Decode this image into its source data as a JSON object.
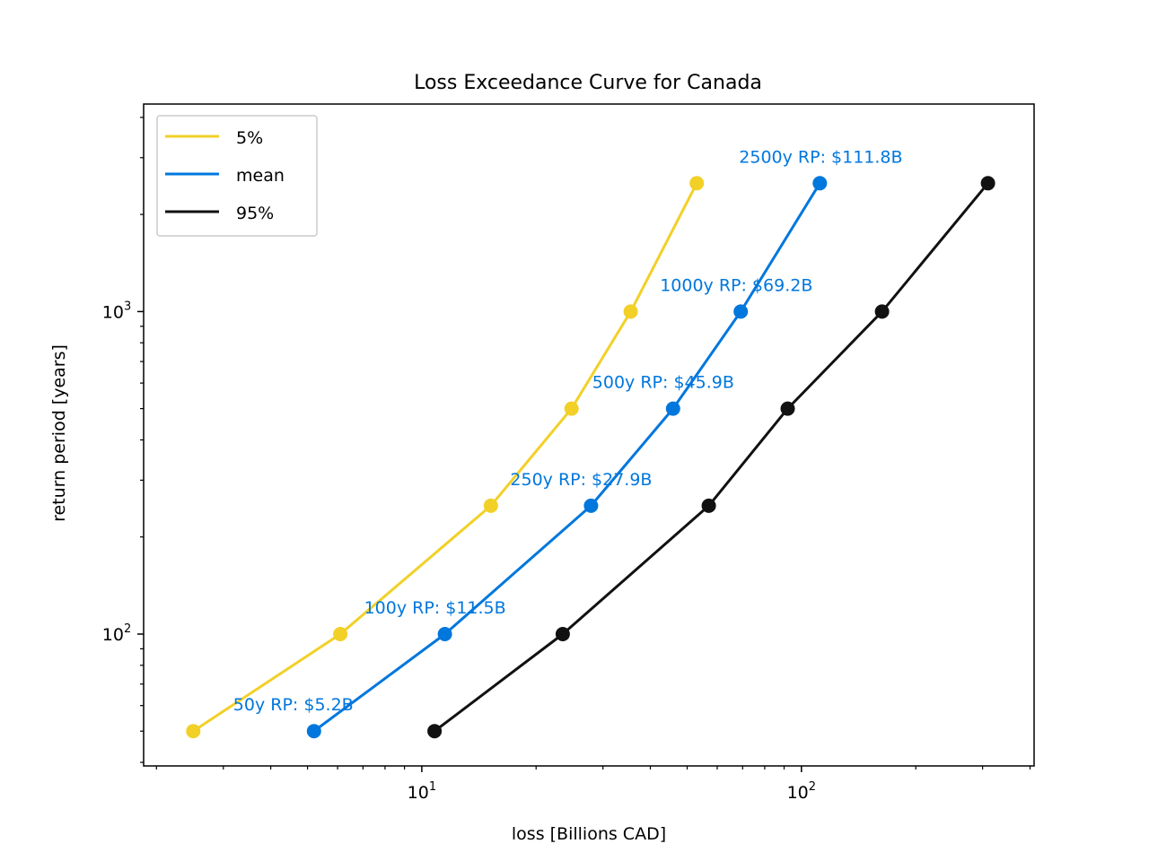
{
  "chart_data": {
    "type": "line",
    "title": "Loss Exceedance Curve for Canada",
    "xlabel": "loss [Billions CAD]",
    "ylabel": "return period [years]",
    "xscale": "log",
    "yscale": "log",
    "xlim": [
      1.85,
      410
    ],
    "ylim": [
      39,
      4400
    ],
    "x_ticks": [
      {
        "base": "10",
        "exp": "1",
        "value": 10
      },
      {
        "base": "10",
        "exp": "2",
        "value": 100
      }
    ],
    "y_ticks": [
      {
        "base": "10",
        "exp": "2",
        "value": 100
      },
      {
        "base": "10",
        "exp": "3",
        "value": 1000
      }
    ],
    "grid": false,
    "legend_position": "top-left",
    "return_periods": [
      50,
      100,
      250,
      500,
      1000,
      2500
    ],
    "series": [
      {
        "name": "5%",
        "color": "#f2d027",
        "loss": [
          2.5,
          6.1,
          15.2,
          24.8,
          35.5,
          53.0
        ]
      },
      {
        "name": "mean",
        "color": "#0077dd",
        "loss": [
          5.2,
          11.5,
          27.9,
          45.9,
          69.2,
          111.8
        ]
      },
      {
        "name": "95%",
        "color": "#111111",
        "loss": [
          10.8,
          23.5,
          57.0,
          92.0,
          163.0,
          310.0
        ]
      }
    ],
    "annotations": [
      {
        "text": "50y RP: $5.2B",
        "x": 5.2,
        "y": 50
      },
      {
        "text": "100y RP: $11.5B",
        "x": 11.5,
        "y": 100
      },
      {
        "text": "250y RP: $27.9B",
        "x": 27.9,
        "y": 250
      },
      {
        "text": "500y RP: $45.9B",
        "x": 45.9,
        "y": 500
      },
      {
        "text": "1000y RP: $69.2B",
        "x": 69.2,
        "y": 1000
      },
      {
        "text": "2500y RP: $111.8B",
        "x": 111.8,
        "y": 2500
      }
    ],
    "annotation_color": "#0077dd"
  }
}
